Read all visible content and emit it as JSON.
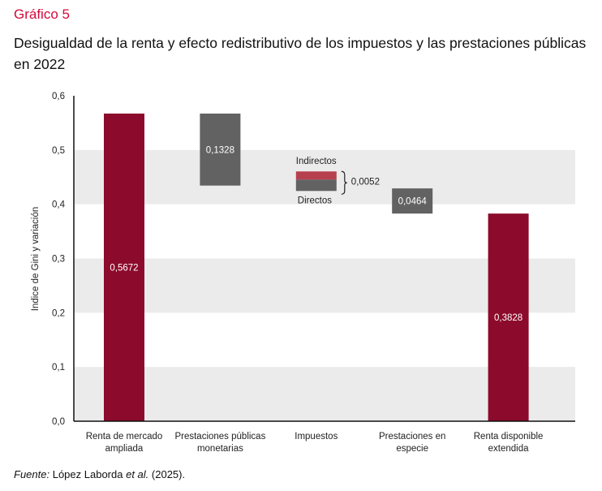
{
  "header": {
    "figure_label": "Gráfico 5",
    "title": "Desigualdad de la renta y efecto redistributivo de los impuestos y las prestaciones públicas en 2022"
  },
  "footer": {
    "source_prefix": "Fuente:",
    "source_author": "López Laborda",
    "source_etal": "et al.",
    "source_year": "(2025)."
  },
  "chart_data": {
    "type": "bar",
    "subtype": "waterfall",
    "title": "Desigualdad de la renta y efecto redistributivo de los impuestos y las prestaciones públicas en 2022",
    "xlabel": "",
    "ylabel": "Indice de Gini y variación",
    "ylim": [
      0,
      0.6
    ],
    "yticks": [
      0.0,
      0.1,
      0.2,
      0.3,
      0.4,
      0.5,
      0.6
    ],
    "ytick_labels": [
      "0,0",
      "0,1",
      "0,2",
      "0,3",
      "0,4",
      "0,5",
      "0,6"
    ],
    "grid": "alternating horizontal bands",
    "categories": [
      [
        "Renta de mercado",
        "ampliada"
      ],
      [
        "Prestaciones públicas",
        "monetarias"
      ],
      [
        "Impuestos"
      ],
      [
        "Prestaciones en",
        "especie"
      ],
      [
        "Renta disponible",
        "extendida"
      ]
    ],
    "bars": [
      {
        "category": "Renta de mercado ampliada",
        "kind": "total",
        "start": 0,
        "end": 0.5672,
        "value": 0.5672,
        "label": "0,5672",
        "color": "#8c0a2b"
      },
      {
        "category": "Prestaciones públicas monetarias",
        "kind": "reduction",
        "start": 0.5672,
        "end": 0.4344,
        "value": 0.1328,
        "label": "0,1328",
        "color": "#626262"
      },
      {
        "category": "Impuestos",
        "kind": "reduction-detail",
        "value": 0.0052,
        "label": "0,0052",
        "display_range": [
          0.4245,
          0.4605
        ],
        "components": [
          {
            "name": "Indirectos",
            "color": "#b7404f",
            "share": 0.42
          },
          {
            "name": "Directos",
            "color": "#626262",
            "share": 0.58
          }
        ]
      },
      {
        "category": "Prestaciones en especie",
        "kind": "reduction",
        "start": 0.4292,
        "end": 0.3828,
        "value": 0.0464,
        "label": "0,0464",
        "color": "#626262"
      },
      {
        "category": "Renta disponible extendida",
        "kind": "total",
        "start": 0,
        "end": 0.3828,
        "value": 0.3828,
        "label": "0,3828",
        "color": "#8c0a2b"
      }
    ],
    "annotations": [
      "Indirectos",
      "Directos"
    ],
    "colors": {
      "accent": "#d4093b",
      "total": "#8c0a2b",
      "reduction": "#626262",
      "indirect": "#b7404f",
      "band": "#ebebeb"
    }
  }
}
